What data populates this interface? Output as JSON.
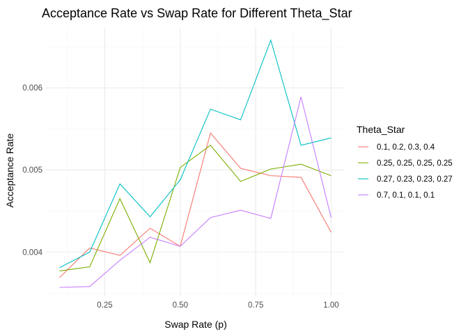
{
  "chart_data": {
    "type": "line",
    "title": "Acceptance Rate vs Swap Rate for Different Theta_Star",
    "xlabel": "Swap Rate (p)",
    "ylabel": "Acceptance Rate",
    "x": [
      0.1,
      0.2,
      0.3,
      0.4,
      0.5,
      0.6,
      0.7,
      0.8,
      0.9,
      1.0
    ],
    "xlim": [
      0.055,
      1.045
    ],
    "ylim": [
      0.00346,
      0.00673
    ],
    "x_ticks": [
      0.25,
      0.5,
      0.75,
      1.0
    ],
    "x_tick_labels": [
      "0.25",
      "0.50",
      "0.75",
      "1.00"
    ],
    "x_minor_ticks": [
      0.125,
      0.375,
      0.625,
      0.875
    ],
    "y_ticks": [
      0.004,
      0.005,
      0.006
    ],
    "y_tick_labels": [
      "0.004",
      "0.005",
      "0.006"
    ],
    "y_minor_ticks": [
      0.0035,
      0.0045,
      0.0055,
      0.0065
    ],
    "grid": true,
    "legend": {
      "title": "Theta_Star",
      "position": "right"
    },
    "series": [
      {
        "name": "0.1, 0.2, 0.3, 0.4",
        "color": "#F8766D",
        "values": [
          0.00369,
          0.00405,
          0.00396,
          0.00429,
          0.00407,
          0.00545,
          0.00502,
          0.00493,
          0.00491,
          0.00424
        ]
      },
      {
        "name": "0.25, 0.25, 0.25, 0.25",
        "color": "#7CAE00",
        "values": [
          0.00377,
          0.00382,
          0.00465,
          0.00387,
          0.00503,
          0.0053,
          0.00486,
          0.00501,
          0.00507,
          0.00493
        ]
      },
      {
        "name": "0.27, 0.23, 0.23, 0.27",
        "color": "#00BFC4",
        "values": [
          0.00381,
          0.004,
          0.00483,
          0.00443,
          0.00488,
          0.00574,
          0.00561,
          0.00658,
          0.0053,
          0.00539
        ]
      },
      {
        "name": "0.7, 0.1, 0.1, 0.1",
        "color": "#C77CFF",
        "values": [
          0.00357,
          0.00358,
          0.0039,
          0.00418,
          0.00407,
          0.00442,
          0.00451,
          0.00441,
          0.00589,
          0.00442
        ]
      }
    ]
  }
}
